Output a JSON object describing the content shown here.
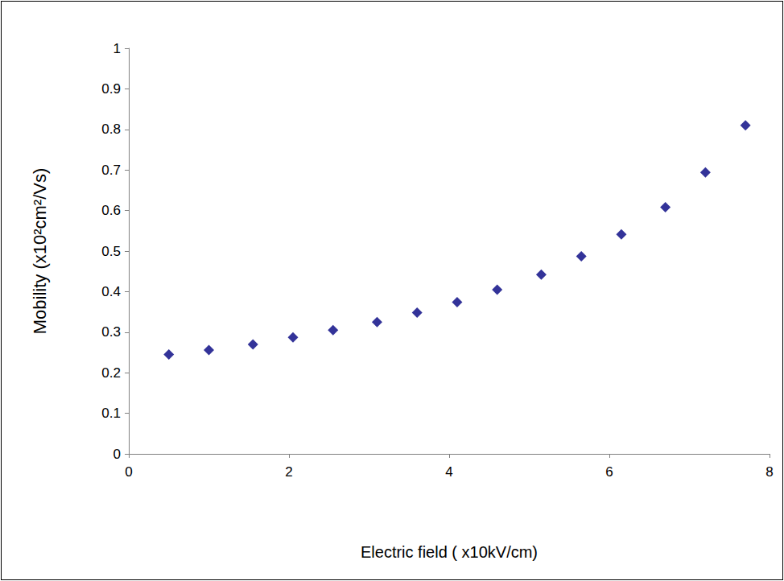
{
  "chart_data": {
    "type": "scatter",
    "x_label": "Electric field ( x10kV/cm)",
    "y_label": "Mobility (x10²cm²/Vs)",
    "x": [
      0.5,
      1.0,
      1.55,
      2.05,
      2.55,
      3.1,
      3.6,
      4.1,
      4.6,
      5.15,
      5.65,
      6.15,
      6.7,
      7.2,
      7.7
    ],
    "values": [
      0.245,
      0.256,
      0.27,
      0.287,
      0.305,
      0.325,
      0.348,
      0.374,
      0.405,
      0.442,
      0.487,
      0.541,
      0.608,
      0.694,
      0.81
    ],
    "color": "#000080",
    "marker": "diamond",
    "xlim": [
      0,
      8
    ],
    "xticks": [
      0,
      2,
      4,
      6,
      8
    ],
    "ylim": [
      0,
      1
    ],
    "yticks": [
      0,
      0.1,
      0.2,
      0.3,
      0.4,
      0.5,
      0.6,
      0.7,
      0.8,
      0.9,
      1
    ],
    "grid": false
  }
}
